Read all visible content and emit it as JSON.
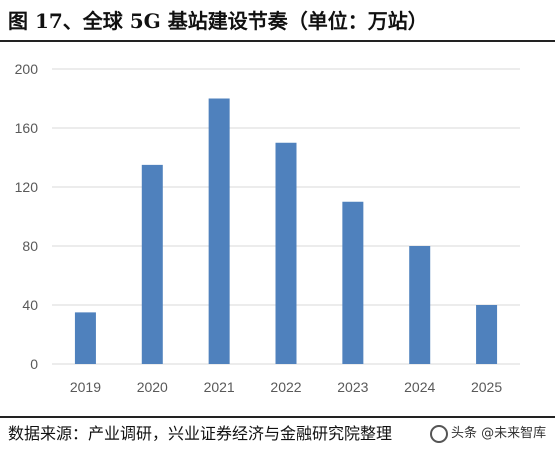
{
  "header": {
    "title": "图 17、全球 5G 基站建设节奏（单位：万站）"
  },
  "footer": {
    "source": "数据来源：产业调研，兴业证券经济与金融研究院整理",
    "watermark": "头条 @未来智库"
  },
  "colors": {
    "bar": "#4F81BD",
    "grid": "#D9D9D9",
    "tick_text": "#595959"
  },
  "chart_data": {
    "type": "bar",
    "categories": [
      "2019",
      "2020",
      "2021",
      "2022",
      "2023",
      "2024",
      "2025"
    ],
    "values": [
      35,
      135,
      180,
      150,
      110,
      80,
      40
    ],
    "yticks": [
      0,
      40,
      80,
      120,
      160,
      200
    ],
    "ylim": [
      0,
      200
    ],
    "grid": true,
    "legend": "none"
  }
}
